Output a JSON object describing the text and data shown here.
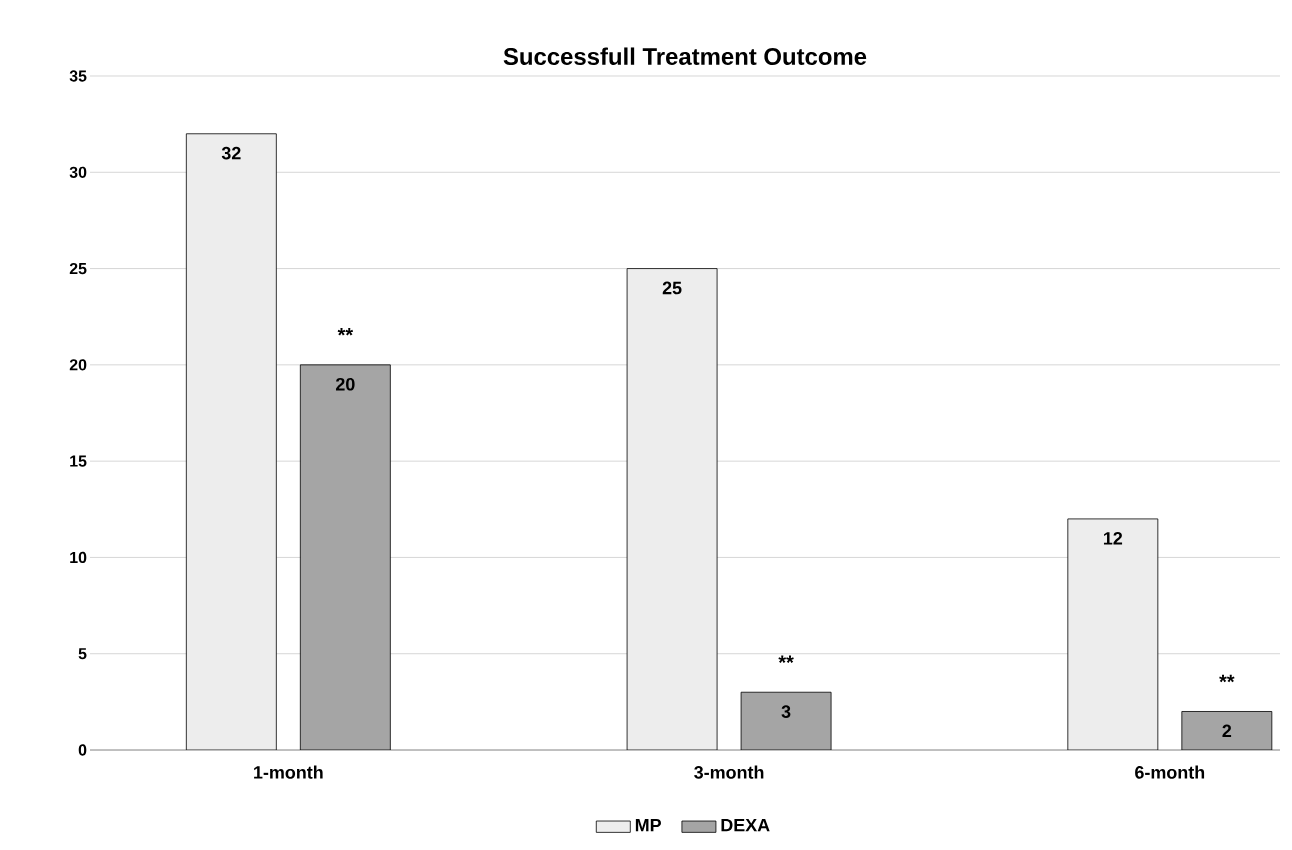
{
  "chart_data": {
    "type": "bar",
    "title": "Successfull Treatment Outcome",
    "categories": [
      "1-month",
      "3-month",
      "6-month"
    ],
    "series": [
      {
        "name": "MP",
        "color": "#ededed",
        "values": [
          32,
          25,
          12
        ]
      },
      {
        "name": "DEXA",
        "color": "#a5a5a5",
        "values": [
          20,
          3,
          2
        ]
      }
    ],
    "ylim": [
      0,
      35
    ],
    "yticks": [
      0,
      5,
      10,
      15,
      20,
      25,
      30,
      35
    ],
    "grid": "y",
    "legend": "bottom",
    "data_labels": true,
    "annotations": [
      "**",
      "**",
      "**"
    ]
  }
}
